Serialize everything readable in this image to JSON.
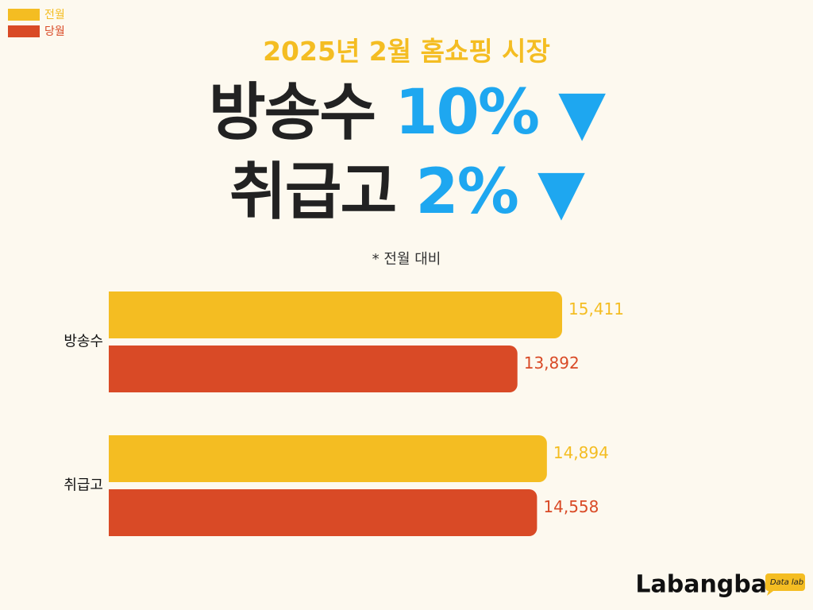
{
  "chart_data": {
    "type": "bar",
    "orientation": "horizontal",
    "title": "2025년 2월 홈쇼핑 시장",
    "headlines": [
      {
        "label": "방송수",
        "change": "10%",
        "symbol": "▼"
      },
      {
        "label": "취급고",
        "change": "2%",
        "symbol": "▼"
      }
    ],
    "note": "* 전월 대비",
    "categories": [
      "방송수",
      "취급고"
    ],
    "series": [
      {
        "name": "전월",
        "color": "#f4bd22",
        "values": [
          15411,
          14894
        ],
        "value_labels": [
          "15,411",
          "14,894"
        ]
      },
      {
        "name": "당월",
        "color": "#d94a26",
        "values": [
          13892,
          14558
        ],
        "value_labels": [
          "13,892",
          "14,558"
        ]
      }
    ],
    "legend": "top-left",
    "headline_color": "#1ea7f0",
    "logo": "Labangba",
    "logo_tag": "Data lab"
  }
}
